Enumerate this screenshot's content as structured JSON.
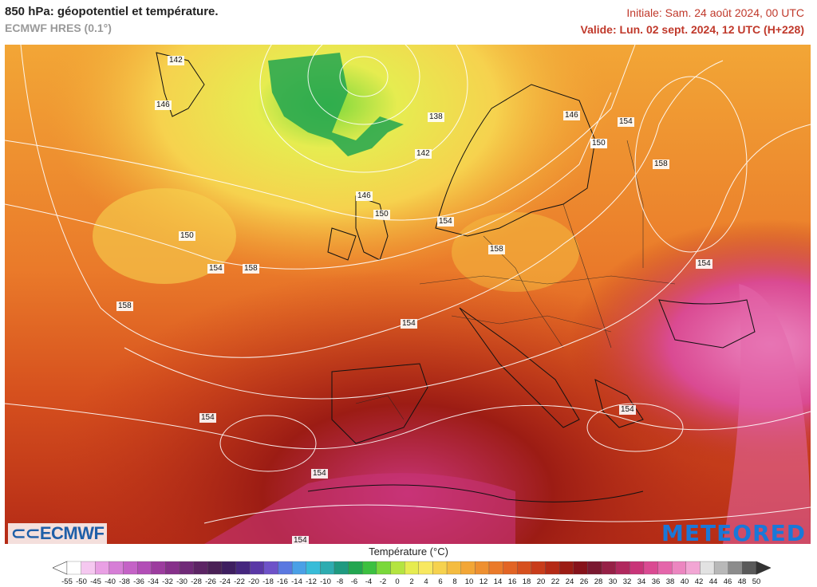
{
  "header": {
    "title": "850 hPa: géopotentiel et température.",
    "subtitle": "ECMWF HRES (0.1°)",
    "initial": "Initiale: Sam. 24 août 2024, 00 UTC",
    "valid": "Valide: Lun. 02 sept. 2024, 12 UTC (H+228)"
  },
  "contour_labels": [
    "142",
    "146",
    "138",
    "142",
    "146",
    "154",
    "150",
    "150",
    "158",
    "146",
    "150",
    "154",
    "154",
    "150",
    "158",
    "154",
    "158",
    "158",
    "154",
    "154",
    "154",
    "154",
    "154"
  ],
  "logos": {
    "left": "ECMWF",
    "right": "METEORED"
  },
  "legend": {
    "title": "Température (°C)",
    "ticks": [
      "-55",
      "-50",
      "-45",
      "-40",
      "-38",
      "-36",
      "-34",
      "-32",
      "-30",
      "-28",
      "-26",
      "-24",
      "-22",
      "-20",
      "-18",
      "-16",
      "-14",
      "-12",
      "-10",
      "-8",
      "-6",
      "-4",
      "-2",
      "0",
      "2",
      "4",
      "6",
      "8",
      "10",
      "12",
      "14",
      "16",
      "18",
      "20",
      "22",
      "24",
      "26",
      "28",
      "30",
      "32",
      "34",
      "36",
      "38",
      "40",
      "42",
      "44",
      "46",
      "48",
      "50"
    ],
    "colors": [
      "#ffffff",
      "#f5c8f0",
      "#e9a0e4",
      "#d67ed6",
      "#c462c6",
      "#b24eb6",
      "#9c3c9e",
      "#86308a",
      "#702a78",
      "#5c2464",
      "#4a2056",
      "#3e1e60",
      "#45267e",
      "#5a38a6",
      "#6e52c8",
      "#5a78e0",
      "#4aa0e6",
      "#38bcd8",
      "#2eacb0",
      "#1e9a80",
      "#22a650",
      "#3cc040",
      "#7ad83a",
      "#b4e440",
      "#e6ec50",
      "#f8e860",
      "#f6d24e",
      "#f4bc40",
      "#f2a636",
      "#ee9030",
      "#ea7a2a",
      "#e26424",
      "#d6501e",
      "#c83c1a",
      "#b42a16",
      "#9c1c14",
      "#86121a",
      "#7a1830",
      "#962046",
      "#b0285e",
      "#c83478",
      "#da4a92",
      "#e466aa",
      "#ec86c0",
      "#f2a6d4",
      "#e2e2e2",
      "#b8b8b8",
      "#8c8c8c",
      "#5a5a5a"
    ]
  }
}
